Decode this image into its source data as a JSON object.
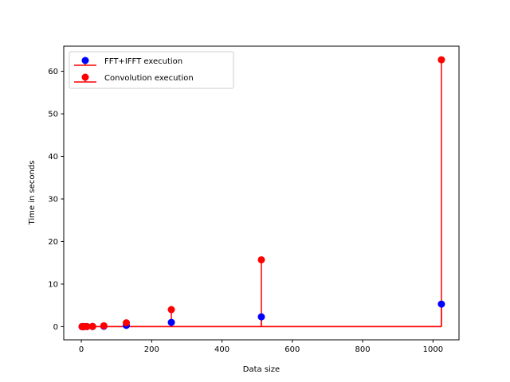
{
  "chart_data": {
    "type": "stem",
    "title": "",
    "xlabel": "Data size",
    "ylabel": "Time in seconds",
    "xlim": [
      -50,
      1074
    ],
    "ylim": [
      -3.1,
      65.9
    ],
    "xticks": [
      0,
      200,
      400,
      600,
      800,
      1000
    ],
    "yticks": [
      0,
      10,
      20,
      30,
      40,
      50,
      60
    ],
    "grid": false,
    "legend_position": "upper-left",
    "baseline": 0,
    "series": [
      {
        "name": "FFT+IFFT execution",
        "marker_color": "#0000ff",
        "line_color": "#ff0000",
        "x": [
          2,
          4,
          8,
          16,
          32,
          64,
          128,
          256,
          512,
          1024
        ],
        "y": [
          0.0,
          0.0,
          0.0,
          0.01,
          0.02,
          0.08,
          0.3,
          1.0,
          2.3,
          5.3
        ]
      },
      {
        "name": "Convolution execution",
        "marker_color": "#ff0000",
        "line_color": "#ff0000",
        "x": [
          2,
          4,
          8,
          16,
          32,
          64,
          128,
          256,
          512,
          1024
        ],
        "y": [
          0.0,
          0.0,
          0.01,
          0.02,
          0.05,
          0.2,
          0.9,
          4.0,
          15.7,
          62.7
        ]
      }
    ]
  }
}
